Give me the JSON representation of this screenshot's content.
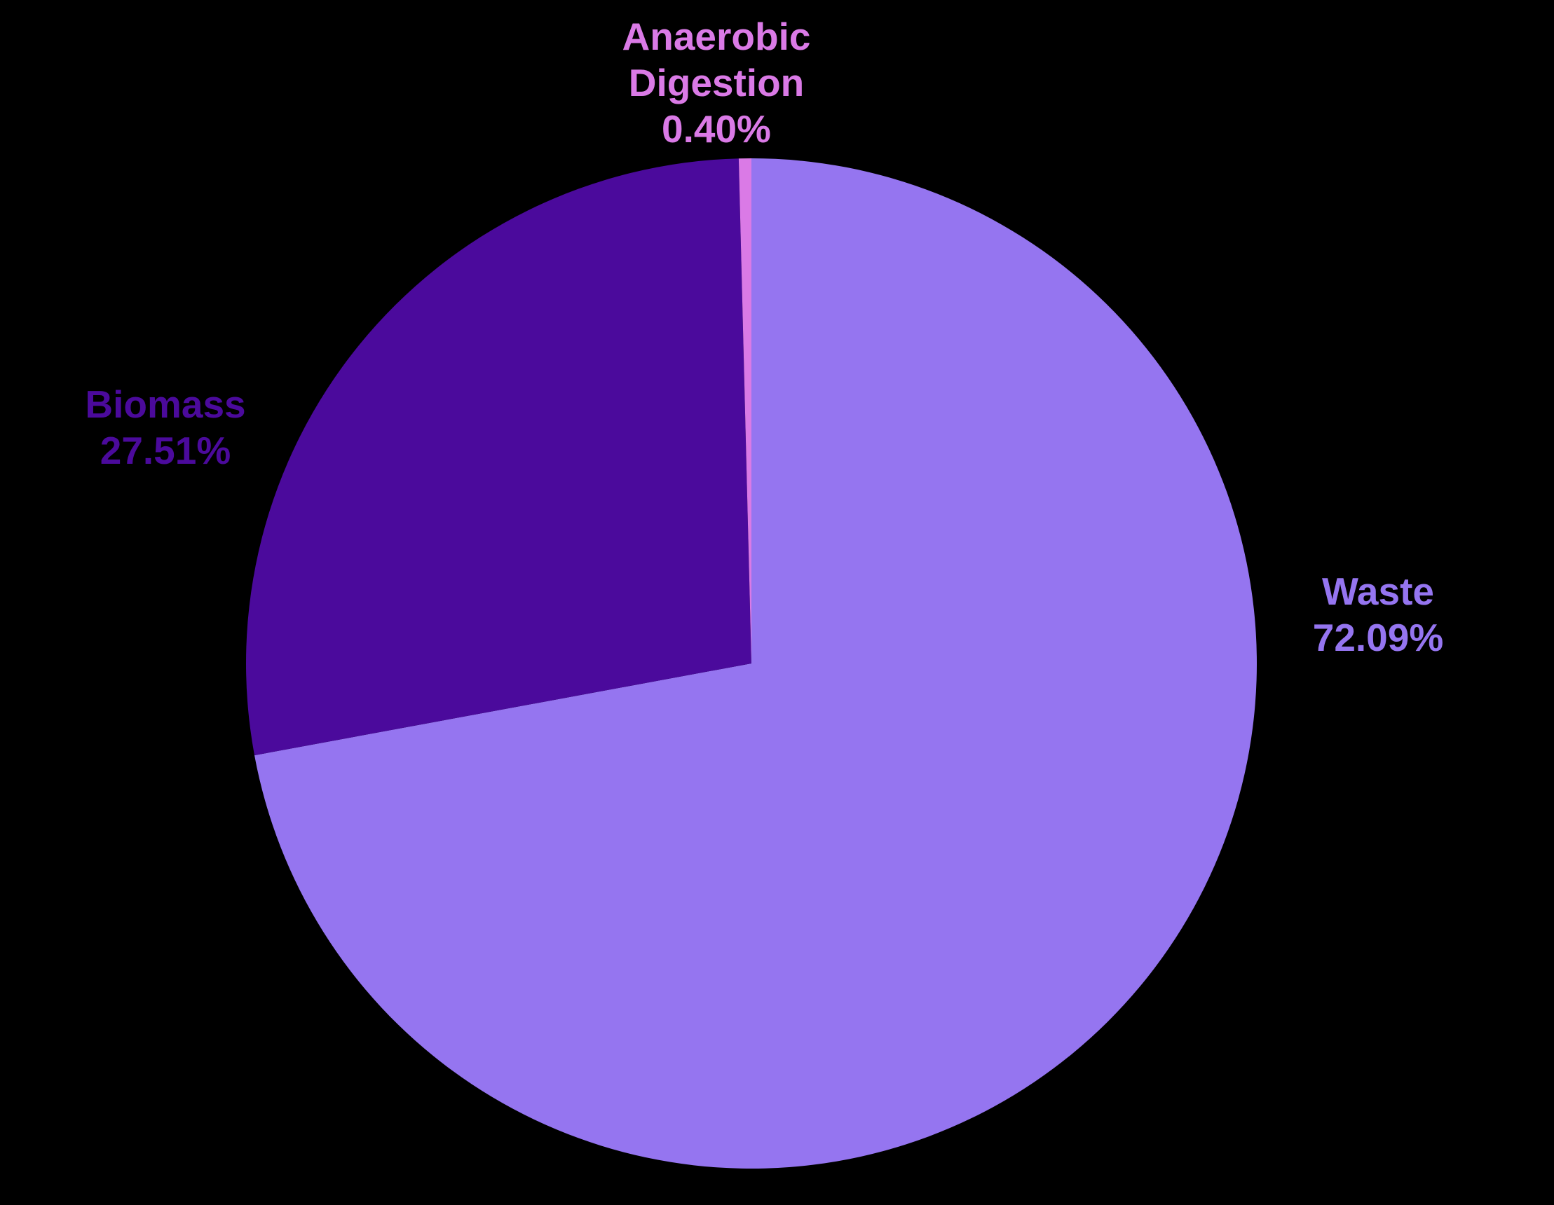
{
  "page": {
    "background": "#000000"
  },
  "chart_data": {
    "type": "pie",
    "title": "",
    "categories": [
      "Waste",
      "Biomass",
      "Anaerobic Digestion"
    ],
    "values": [
      72.09,
      27.51,
      0.4
    ],
    "value_labels": [
      "72.09%",
      "27.51%",
      "0.40%"
    ],
    "colors": [
      "#9575F0",
      "#4B0A9C",
      "#DA7AE6"
    ],
    "start_angle": "top",
    "direction": "clockwise",
    "legend_position": "none",
    "labels_outside": true,
    "labels": [
      {
        "lines": [
          "Waste",
          "72.09%"
        ]
      },
      {
        "lines": [
          "Biomass",
          "27.51%"
        ]
      },
      {
        "lines": [
          "Anaerobic",
          "Digestion",
          "0.40%"
        ]
      }
    ]
  }
}
